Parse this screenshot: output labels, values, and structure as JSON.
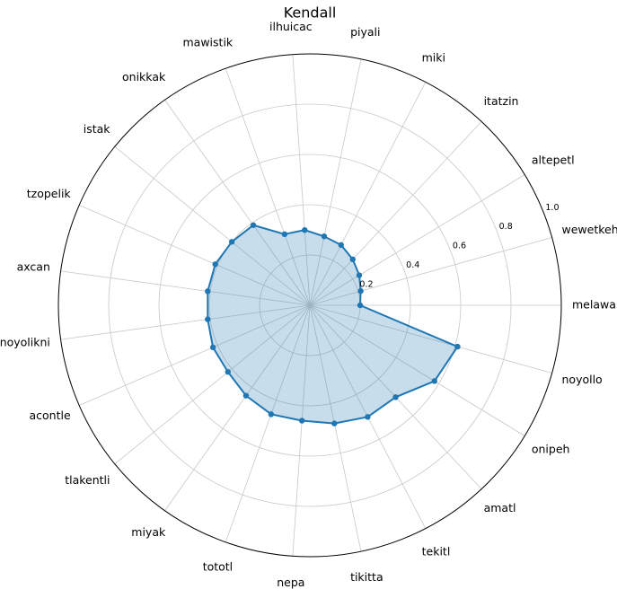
{
  "chart_data": {
    "type": "radar",
    "title": "Kendall",
    "categories": [
      "melawak",
      "wewetkeh",
      "altepetl",
      "itatzin",
      "miki",
      "piyali",
      "ilhuicac",
      "mawistik",
      "onikkak",
      "istak",
      "tzopelik",
      "axcan",
      "noyolikni",
      "acontle",
      "tlakentli",
      "miyak",
      "tototl",
      "nepa",
      "tikitta",
      "tekitl",
      "amatl",
      "onipeh",
      "noyollo"
    ],
    "values": [
      0.2,
      0.21,
      0.23,
      0.25,
      0.27,
      0.28,
      0.3,
      0.3,
      0.39,
      0.4,
      0.41,
      0.41,
      0.41,
      0.42,
      0.42,
      0.44,
      0.46,
      0.46,
      0.48,
      0.5,
      0.5,
      0.58,
      0.61
    ],
    "color": "#1f77b4",
    "ylim": [
      0,
      1
    ],
    "yticks": [
      0.2,
      0.4,
      0.6,
      0.8,
      {
        "value": 1,
        "label": "1.0"
      }
    ],
    "grid": true
  }
}
